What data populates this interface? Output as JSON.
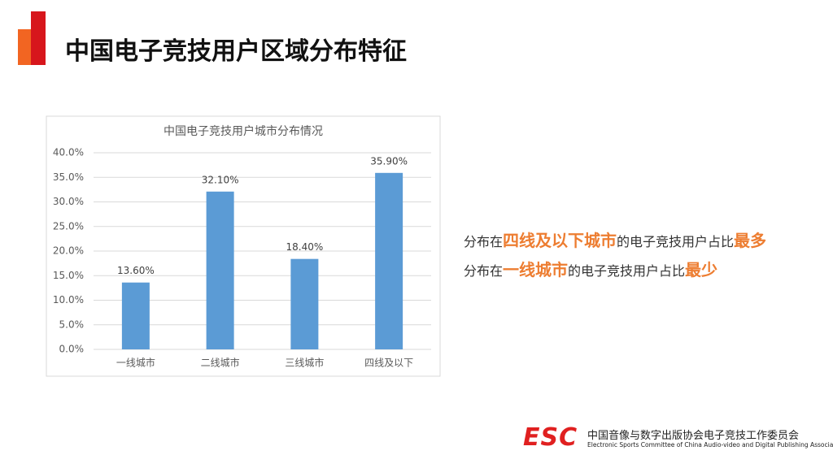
{
  "header": {
    "title": "中国电子竞技用户区域分布特征"
  },
  "chart_data": {
    "type": "bar",
    "title": "中国电子竞技用户城市分布情况",
    "categories": [
      "一线城市",
      "二线城市",
      "三线城市",
      "四线及以下"
    ],
    "values": [
      13.6,
      32.1,
      18.4,
      35.9
    ],
    "value_labels": [
      "13.60%",
      "32.10%",
      "18.40%",
      "35.90%"
    ],
    "color": "#5b9bd5",
    "ylim": [
      0,
      40
    ],
    "yticks": [
      {
        "value": 0,
        "label": "0.0%"
      },
      {
        "value": 5,
        "label": "5.0%"
      },
      {
        "value": 10,
        "label": "10.0%"
      },
      {
        "value": 15,
        "label": "15.0%"
      },
      {
        "value": 20,
        "label": "20.0%"
      },
      {
        "value": 25,
        "label": "25.0%"
      },
      {
        "value": 30,
        "label": "30.0%"
      },
      {
        "value": 35,
        "label": "35.0%"
      },
      {
        "value": 40,
        "label": "40.0%"
      }
    ],
    "grid": true
  },
  "notes": [
    [
      "分布在",
      "四线及以下城市",
      "的电子竞技用户占比",
      "最多"
    ],
    [
      "分布在",
      "一线城市",
      "的电子竞技用户占比",
      "最少"
    ]
  ],
  "footer": {
    "logo": "ESC",
    "org_cn": "中国音像与数字出版协会电子竞技工作委员会",
    "org_en": "Electronic Sports Committee of China Audio-video and Digital Publishing Association"
  }
}
